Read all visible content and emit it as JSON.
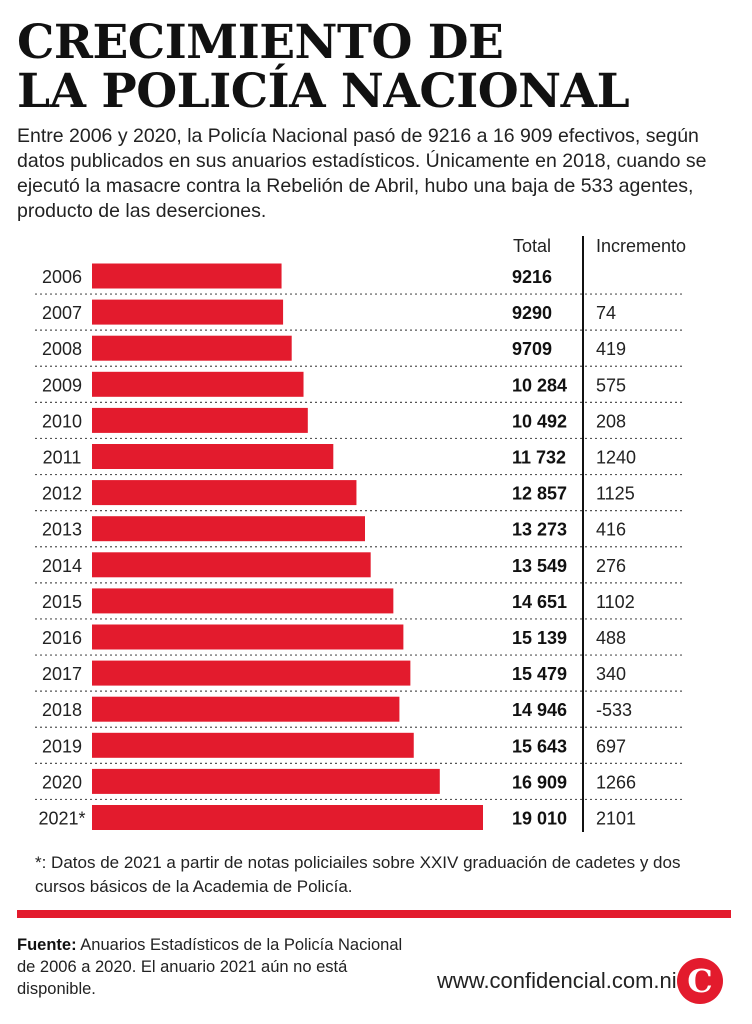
{
  "title_line1": "CRECIMIENTO DE",
  "title_line2": "LA POLICÍA NACIONAL",
  "intro": "Entre 2006 y 2020, la Policía Nacional pasó de 9216 a 16 909 efectivos, según datos publicados en sus anuarios estadísticos. Únicamente en 2018, cuando se ejecutó la masacre contra la Rebelión de Abril, hubo una baja de 533 agentes, producto de las deserciones.",
  "colors": {
    "bar": "#e31b2d",
    "rule": "#e31b2d",
    "text": "#1a1a1a"
  },
  "chart_data": {
    "type": "bar",
    "orientation": "horizontal",
    "columns": [
      "Total",
      "Incremento"
    ],
    "categories": [
      "2006",
      "2007",
      "2008",
      "2009",
      "2010",
      "2011",
      "2012",
      "2013",
      "2014",
      "2015",
      "2016",
      "2017",
      "2018",
      "2019",
      "2020",
      "2021*"
    ],
    "values": [
      9216,
      9290,
      9709,
      10284,
      10492,
      11732,
      12857,
      13273,
      13549,
      14651,
      15139,
      15479,
      14946,
      15643,
      16909,
      19010
    ],
    "value_labels": [
      "9216",
      "9290",
      "9709",
      "10 284",
      "10 492",
      "11 732",
      "12 857",
      "13 273",
      "13 549",
      "14 651",
      "15 139",
      "15 479",
      "14 946",
      "15 643",
      "16 909",
      "19 010"
    ],
    "increments": [
      "",
      "74",
      "419",
      "575",
      "208",
      "1240",
      "1125",
      "416",
      "276",
      "1102",
      "488",
      "340",
      "-533",
      "697",
      "1266",
      "2101"
    ]
  },
  "footnote": "*: Datos de 2021 a partir de notas policiailes sobre XXIV graduación de cadetes y dos cursos básicos de la Academia de Policía.",
  "source_label": "Fuente:",
  "source_text": "Anuarios Estadísticos de la Policía Nacional de 2006 a 2020. El anuario 2021 aún no está disponible.",
  "website": "www.confidencial.com.ni",
  "logo_letter": "C"
}
